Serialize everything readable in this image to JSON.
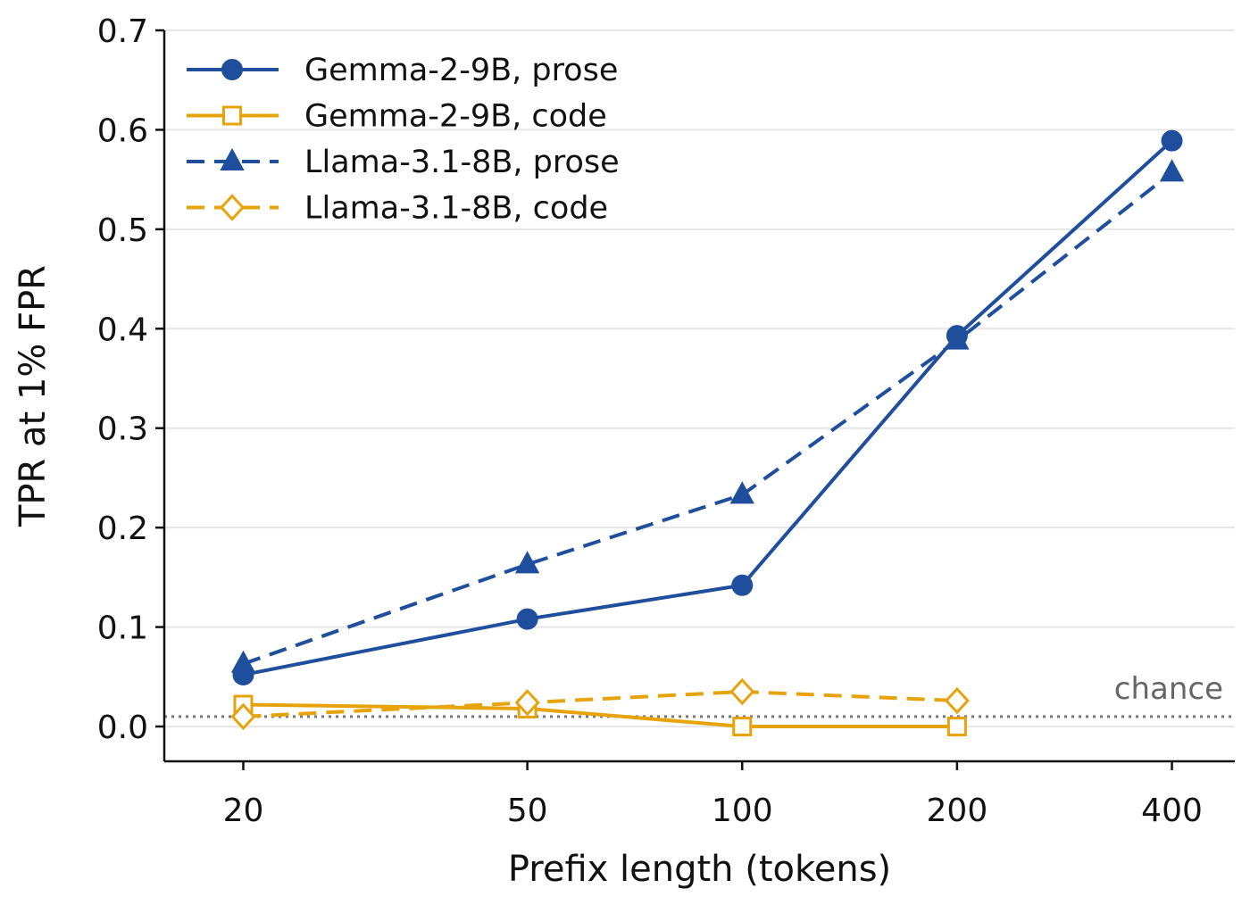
{
  "chart_data": {
    "type": "line",
    "title": "",
    "xlabel": "Prefix length (tokens)",
    "ylabel": "TPR at 1% FPR",
    "x_scale": "log",
    "x_ticks": [
      20,
      50,
      100,
      200,
      400
    ],
    "y_ticks": [
      0.0,
      0.1,
      0.2,
      0.3,
      0.4,
      0.5,
      0.6,
      0.7
    ],
    "ylim": [
      -0.035,
      0.7
    ],
    "grid": "horizontal",
    "legend_position": "top-left",
    "series": [
      {
        "name": "Gemma-2-9B, prose",
        "color": "#1f4e9c",
        "line_style": "solid",
        "marker": "circle-filled",
        "x": [
          20,
          50,
          100,
          200,
          400
        ],
        "values": [
          0.052,
          0.108,
          0.142,
          0.393,
          0.589
        ]
      },
      {
        "name": "Gemma-2-9B, code",
        "color": "#e6a30b",
        "line_style": "solid",
        "marker": "square-open",
        "x": [
          20,
          50,
          100,
          200
        ],
        "values": [
          0.022,
          0.018,
          0.0,
          0.0
        ]
      },
      {
        "name": "Llama-3.1-8B, prose",
        "color": "#1f4e9c",
        "line_style": "dashed",
        "marker": "triangle-filled",
        "x": [
          20,
          50,
          100,
          200,
          400
        ],
        "values": [
          0.063,
          0.163,
          0.233,
          0.388,
          0.557
        ]
      },
      {
        "name": "Llama-3.1-8B, code",
        "color": "#e6a30b",
        "line_style": "dashed",
        "marker": "diamond-open",
        "x": [
          20,
          50,
          100,
          200
        ],
        "values": [
          0.01,
          0.024,
          0.035,
          0.026
        ]
      }
    ],
    "reference_line": {
      "label": "chance",
      "value": 0.01,
      "color": "#777777",
      "line_style": "dotted"
    }
  }
}
